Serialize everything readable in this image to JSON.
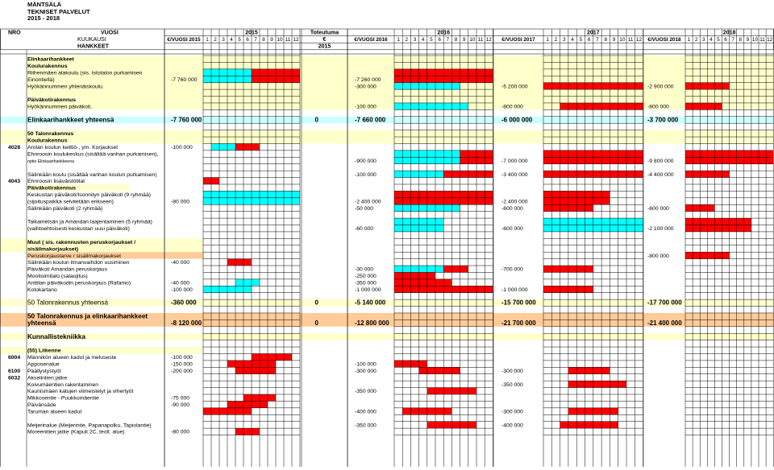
{
  "header": {
    "title": "MÄNTSÄLÄ",
    "subtitle": "TEKNISET PALVELUT",
    "period": "2015 - 2018"
  },
  "colors": {
    "planning": "#00ffff",
    "construction": "#ff0000",
    "yellow_band": "#ffffcc",
    "subtotal_band": "#ccffff",
    "orange_highlight": "#ffcc99",
    "grid": "#000000"
  },
  "columns": {
    "nro": "NRO",
    "vuosi": "VUOSI",
    "kuukausi": "KUUKAUSI",
    "hankkeet": "HANKKEET",
    "toteutuma": "Toteutuma",
    "euro_sign": "€",
    "toteutuma_year": "2015",
    "years": [
      {
        "year": "2015",
        "sum_label": "€/VUOSI 2015"
      },
      {
        "year": "2016",
        "sum_label": "€/VUOSI 2016"
      },
      {
        "year": "2017",
        "sum_label": "€/VUOSI 2017"
      },
      {
        "year": "2018",
        "sum_label": "€/VUOSI 2018"
      }
    ],
    "months": [
      "1",
      "2",
      "3",
      "4",
      "5",
      "6",
      "7",
      "8",
      "9",
      "10",
      "11",
      "12"
    ]
  },
  "rows": [
    {
      "label": "Elinkaarihankkeet",
      "bold": true
    },
    {
      "label": "Koulurakennus",
      "bold": true
    },
    {
      "label": "Riihenmäen alakoulu (sis. tstotalon purkamisen"
    },
    {
      "label": "Einontiellä)",
      "v2015": "-7 760 000",
      "v2016": "-7 260 000"
    },
    {
      "label": "Hyökännummen yhtenäiskoulu.",
      "v2016": "-300 000",
      "v2017": "-5 200 000",
      "v2018": "-2 900 000"
    },
    {
      "label": ""
    },
    {
      "label": "Päiväkotirakennus",
      "bold": true
    },
    {
      "label": "Hyökännummen päiväkoti.",
      "v2016": "-100 000",
      "v2017": "-800 000",
      "v2018": "-800 000"
    },
    {
      "label": ""
    },
    {
      "label": "Elinkaarihankkeet yhteensä",
      "bold": true,
      "big": true,
      "v2015": "-7 760 000",
      "tot": "0",
      "v2016": "-7 660 000",
      "v2017": "-6 000 000",
      "v2018": "-3 700 000"
    },
    {
      "label": ""
    },
    {
      "label": "50 Talonrakennus",
      "bold": true
    },
    {
      "label": "Koulurakennus",
      "bold": true
    },
    {
      "nro": "4028",
      "label": "Arolan koulun keittiö-, ym. Korjaukset",
      "v2015": "-100 000"
    },
    {
      "label": "Ehnroosin koulukeskus (sisältää vanhan purkamisen),"
    },
    {
      "label": "optio Elinkaarihankkeena",
      "small": true,
      "v2016": "-900 000",
      "v2017": "-7 000 000",
      "v2018": "-9 800 000"
    },
    {
      "label": ""
    },
    {
      "label": "Sälinkään koulu (sisältää vanhan  koulun purkamisen)",
      "v2016": "-100 000",
      "v2017": "-3 400 000",
      "v2018": "-4 400 000"
    },
    {
      "nro": "4043",
      "label": "Ehnroosin lisäväistötilat"
    },
    {
      "label": "Päiväkotirakennus",
      "bold": true
    },
    {
      "label": "Keskustan päiväkoti/Isonnityn päiväkoti (9 ryhmää)"
    },
    {
      "label": "(sijoituspaikka selvitetään erikseen)",
      "v2015": "-80 000",
      "v2016": "-2 400 000",
      "v2017": "-2 400 000"
    },
    {
      "label": "Sälinkään päiväkoti (2 ryhmää)",
      "v2016": "-50 000",
      "v2017": "-600 000",
      "v2018": "-600 000"
    },
    {
      "label": ""
    },
    {
      "label": "Taikametsän ja Amandan laajentaminen (5 ryhmää)"
    },
    {
      "label": "(vaihtoehtoisesti keskustan uusi päiväkoti)",
      "v2016": "-60 000",
      "v2017": "-600 000",
      "v2018": "-2 100 000"
    },
    {
      "label": ""
    },
    {
      "label": "Muut ( sis. rakennusten peruskorjaukset /",
      "bold": true
    },
    {
      "label": "sisäilmakorjaukset)",
      "bold": true
    },
    {
      "label": "Peruskorjaustarve / sisäilmakorjaukset",
      "v2018": "-800 000"
    },
    {
      "label": "Sälinkään koulun ilmanvaihdon uusiminen",
      "v2015": "-40 000"
    },
    {
      "label": "Päiväkoti Amandan peruskorjaus",
      "v2016": "-30 000",
      "v2017": "-700 000"
    },
    {
      "label": "Monitoimitalo (salaojitus)",
      "v2016": "-250 000"
    },
    {
      "label": "Anttilan päiväkodin peruskorjaus (Rafamo)",
      "v2015": "-40 000",
      "v2016": "-350 000"
    },
    {
      "label": "Kotokartano",
      "v2015": "-100 000",
      "v2016": "-1 000 000",
      "v2017": "-1 000 000"
    },
    {
      "label": ""
    },
    {
      "label": "50 Talonrakennus yhteensä",
      "big": true,
      "v2015": "-360 000",
      "tot": "0",
      "v2016": "-5 140 000",
      "v2017": "-15 700 000",
      "v2018": "-17 700 000"
    },
    {
      "label": ""
    },
    {
      "label": "50 Talonrakennus  ja elinkaarihankkeet",
      "bold": true,
      "big": true
    },
    {
      "label": "yhteensä",
      "bold": true,
      "big": true,
      "v2015": "-8 120 000",
      "tot": "0",
      "v2016": "-12 800 000",
      "v2017": "-21 700 000",
      "v2018": "-21 400 000"
    },
    {
      "label": ""
    },
    {
      "label": "Kunnallistekniikka",
      "bold": true,
      "big": true
    },
    {
      "label": ""
    },
    {
      "label": "(55) Liikenne",
      "bold": true
    },
    {
      "nro": "6004",
      "label": "Männikön alueen kadut ja meluseste",
      "v2015": "-100 000"
    },
    {
      "label": "Apposenalue",
      "v2015": "-150 000",
      "v2016": "-100 000"
    },
    {
      "nro": "6100",
      "label": "Päällystystyöt",
      "v2015": "-200 000",
      "v2016": "-300 000",
      "v2017": "-300 000"
    },
    {
      "nro": "6032",
      "label": "Akselintien jatke"
    },
    {
      "label": "Koivumäentien rakentaminen",
      "v2017": "-350 000"
    },
    {
      "label": "Kaunismäen katujen viimeistelyt ja vihertyöt",
      "v2016": "-350 000"
    },
    {
      "label": "Mikkosentie - Puukkomäentie",
      "v2015": "-75 000"
    },
    {
      "label": "Päivänsäde",
      "v2015": "-90 000"
    },
    {
      "label": "Taruman alueen kadut",
      "v2016": "-400 000",
      "v2017": "-300 000"
    },
    {
      "label": ""
    },
    {
      "label": "Meijerinalue (Meijerintie, Papanapolku, Tapiolantie)",
      "v2016": "-350 000",
      "v2017": "-400 000"
    },
    {
      "label": "Moreenitien jatke (Kapuli 2C, teoll. alue)",
      "v2015": "-80 000"
    }
  ]
}
